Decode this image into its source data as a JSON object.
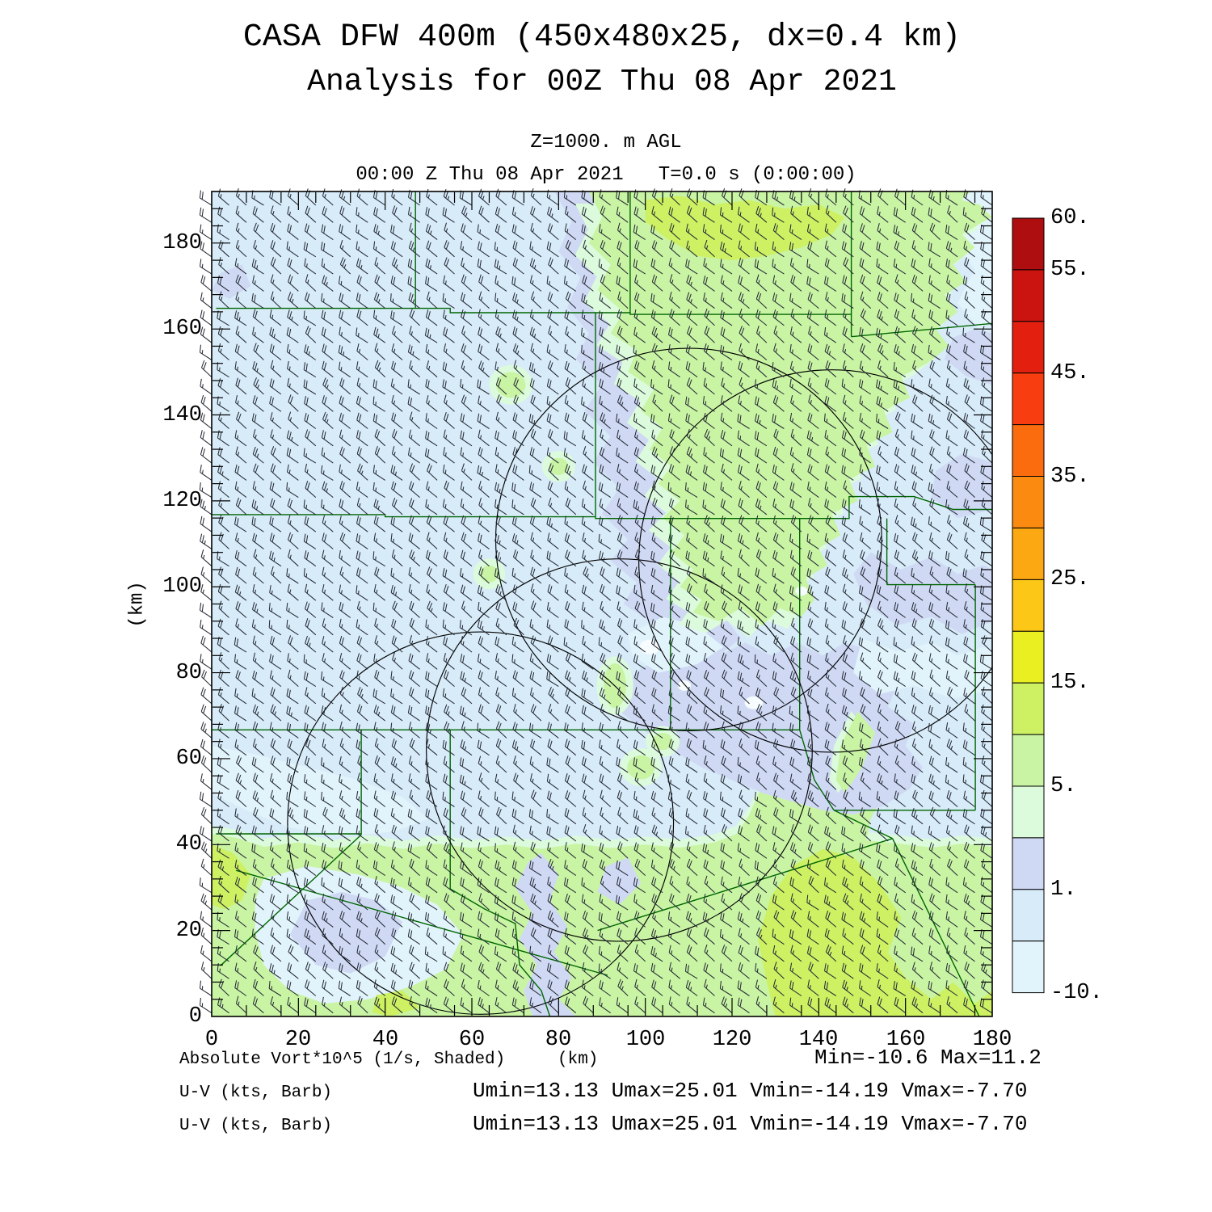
{
  "header": {
    "title1": "CASA DFW 400m (450x480x25, dx=0.4 km)",
    "title2": "Analysis for 00Z Thu 08 Apr 2021",
    "level": "Z=1000. m AGL",
    "time": "00:00 Z Thu 08 Apr 2021   T=0.0 s (0:00:00)"
  },
  "axes": {
    "x_ticks": [
      "0",
      "20",
      "40",
      "60",
      "80",
      "100",
      "120",
      "140",
      "160",
      "180"
    ],
    "x_tick_values": [
      0,
      20,
      40,
      60,
      80,
      100,
      120,
      140,
      160,
      180
    ],
    "y_ticks": [
      "0",
      "20",
      "40",
      "60",
      "80",
      "100",
      "120",
      "140",
      "160",
      "180"
    ],
    "y_tick_values": [
      0,
      20,
      40,
      60,
      80,
      100,
      120,
      140,
      160,
      180
    ],
    "y_unit": "(km)",
    "x_unit": "(km)"
  },
  "colorbar": {
    "labels": [
      {
        "text": "60.",
        "boundary_from_top": 0
      },
      {
        "text": "55.",
        "boundary_from_top": 1
      },
      {
        "text": "45.",
        "boundary_from_top": 3
      },
      {
        "text": "35.",
        "boundary_from_top": 5
      },
      {
        "text": "25.",
        "boundary_from_top": 7
      },
      {
        "text": "15.",
        "boundary_from_top": 9
      },
      {
        "text": "5.",
        "boundary_from_top": 11
      },
      {
        "text": "1.",
        "boundary_from_top": 13
      },
      {
        "text": "-10.",
        "boundary_from_top": 15
      }
    ],
    "colors_top_to_bottom": [
      "#AE0E10",
      "#CB1410",
      "#E32010",
      "#F83E10",
      "#FA6C0E",
      "#FB8A10",
      "#FCA812",
      "#FDC718",
      "#E9EF20",
      "#CDF163",
      "#C9F4A4",
      "#DCFBDC",
      "#CFD9F4",
      "#D7EBF8",
      "#E2F4FB"
    ]
  },
  "footer": {
    "field_label": "Absolute Vort*10^5 (1/s, Shaded)",
    "field_units": "(km)",
    "field_minmax": "Min=-10.6 Max=11.2",
    "barb_label_1": "U-V (kts, Barb)",
    "barb_stats_1": "Umin=13.13 Umax=25.01 Vmin=-14.19 Vmax=-7.70",
    "barb_label_2": "U-V (kts, Barb)",
    "barb_stats_2": "Umin=13.13 Umax=25.01 Vmin=-14.19 Vmax=-7.70"
  },
  "chart_data": {
    "type": "heatmap",
    "title": "CASA DFW 400m (450x480x25, dx=0.4 km)",
    "subtitle": "Analysis for 00Z Thu 08 Apr 2021",
    "field": "Absolute Vort*10^5 (1/s, Shaded)",
    "level": "Z=1000. m AGL",
    "valid_time": "00:00 Z Thu 08 Apr 2021",
    "forecast_time": "T=0.0 s (0:00:00)",
    "xlabel": "(km)",
    "ylabel": "(km)",
    "x_range_km": [
      0,
      180
    ],
    "y_range_km": [
      0,
      192
    ],
    "grid_info": "450x480x25, dx=0.4 km",
    "shading_boundaries_ascending": [
      -10,
      0,
      1,
      3,
      5,
      10,
      15,
      20,
      25,
      30,
      35,
      40,
      45,
      50,
      55,
      60
    ],
    "shading_colors_ascending": [
      "#E2F4FB",
      "#D7EBF8",
      "#CFD9F4",
      "#DCFBDC",
      "#C9F4A4",
      "#CDF163",
      "#E9EF20",
      "#FDC718",
      "#FCA812",
      "#FB8A10",
      "#FA6C0E",
      "#F83E10",
      "#E32010",
      "#CB1410",
      "#AE0E10"
    ],
    "field_min": -10.6,
    "field_max": 11.2,
    "wind": {
      "units": "kts",
      "symbol": "Barb",
      "umin": 13.13,
      "umax": 25.01,
      "vmin": -14.19,
      "vmax": -7.7,
      "barb_grid_spacing_km": 4,
      "mean_direction": "from WNW"
    },
    "range_rings_km": [
      {
        "cx": 62,
        "cy": 45,
        "r": 44.5
      },
      {
        "cx": 94,
        "cy": 62,
        "r": 44.5
      },
      {
        "cx": 110,
        "cy": 111,
        "r": 44.5
      },
      {
        "cx": 143,
        "cy": 106,
        "r": 44.5
      }
    ],
    "legend_position": "right",
    "grid_lines": false
  }
}
